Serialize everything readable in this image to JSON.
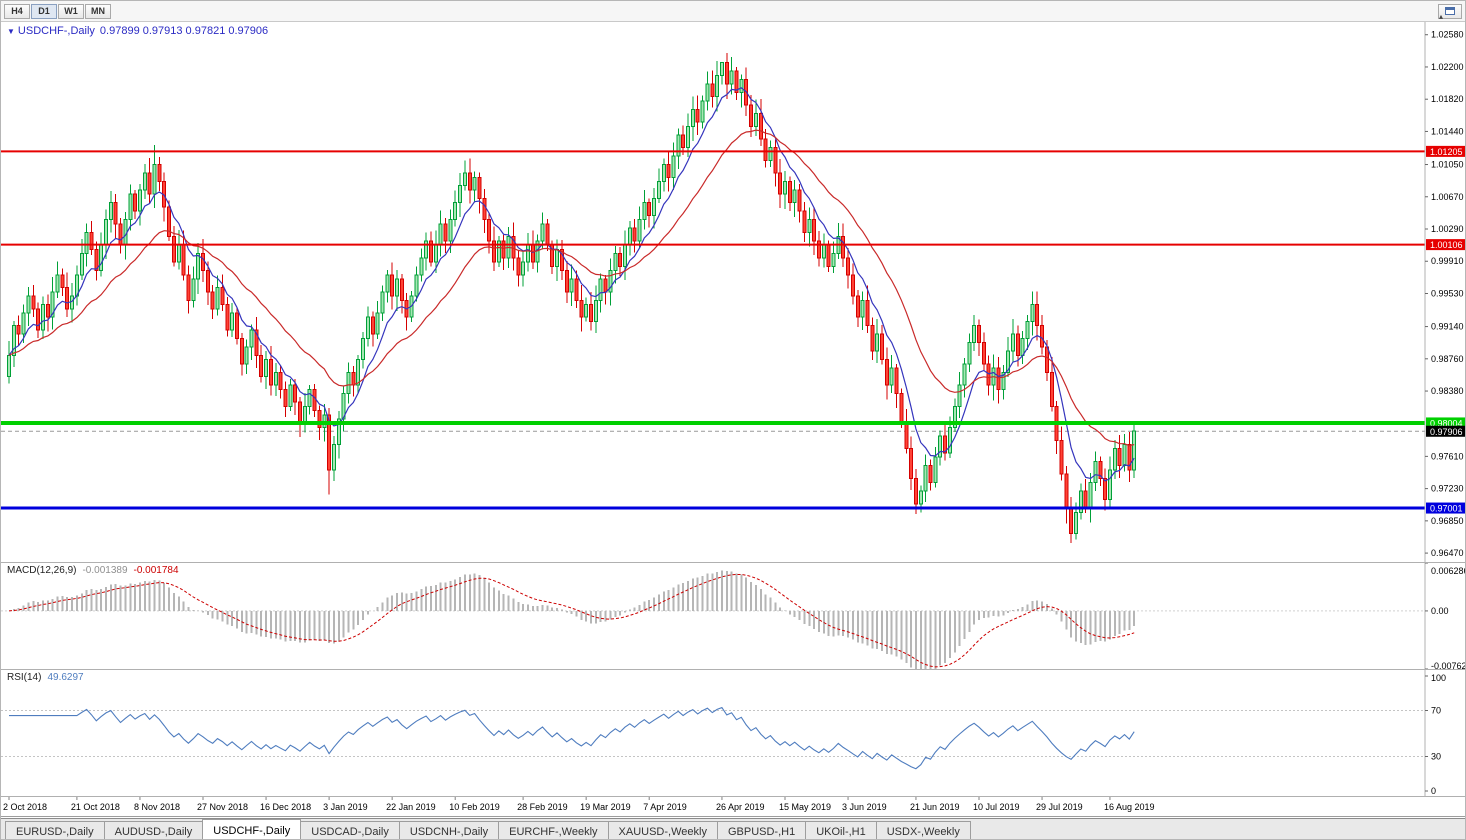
{
  "toolbar": {
    "timeframes": [
      "H4",
      "D1",
      "W1",
      "MN"
    ],
    "active_timeframe": "D1"
  },
  "chart_header": {
    "collapse_icon": "▼",
    "symbol_text": "USDCHF-,Daily",
    "ohlc_text": "0.97899 0.97913 0.97821 0.97906"
  },
  "chart_data": {
    "type": "candlestick",
    "symbol": "USDCHF",
    "period": "Daily",
    "price_axis": {
      "max": 1.0273,
      "min": 0.96365,
      "labels": [
        "1.02580",
        "1.02200",
        "1.01820",
        "1.01440",
        "1.01050",
        "1.00670",
        "1.00290",
        "0.99910",
        "0.99530",
        "0.99140",
        "0.98760",
        "0.98380",
        "0.97610",
        "0.97230",
        "0.96850",
        "0.96470"
      ]
    },
    "candles": {
      "start_open": 0.9855,
      "up_color": "#00a037",
      "up_fill": "#a6e7b4",
      "down_color": "#d40000",
      "down_fill": "#ff4336",
      "closes": [
        0.988,
        0.9915,
        0.9905,
        0.993,
        0.995,
        0.9935,
        0.991,
        0.994,
        0.9925,
        0.9955,
        0.9975,
        0.996,
        0.9935,
        0.995,
        0.9975,
        1.0,
        1.0025,
        1.0005,
        0.998,
        1.001,
        1.004,
        1.006,
        1.0035,
        1.001,
        1.004,
        1.007,
        1.005,
        1.0075,
        1.0095,
        1.007,
        1.0105,
        1.0085,
        1.0055,
        1.002,
        0.999,
        1.001,
        0.9975,
        0.9945,
        0.997,
        1.0,
        0.998,
        0.9955,
        0.9935,
        0.996,
        0.994,
        0.991,
        0.993,
        0.99,
        0.987,
        0.989,
        0.991,
        0.988,
        0.9855,
        0.9875,
        0.9845,
        0.986,
        0.984,
        0.982,
        0.9845,
        0.9825,
        0.98,
        0.982,
        0.984,
        0.9815,
        0.9795,
        0.981,
        0.9745,
        0.9775,
        0.9805,
        0.9835,
        0.986,
        0.9845,
        0.9875,
        0.99,
        0.9925,
        0.9905,
        0.993,
        0.9955,
        0.9975,
        0.995,
        0.997,
        0.9945,
        0.9925,
        0.995,
        0.9975,
        0.9995,
        1.0015,
        0.999,
        1.001,
        1.0035,
        1.0015,
        1.004,
        1.006,
        1.008,
        1.0095,
        1.0075,
        1.009,
        1.0065,
        1.004,
        1.0015,
        0.999,
        1.0015,
        0.9995,
        1.002,
        0.9995,
        0.9975,
        0.999,
        1.001,
        0.999,
        1.0015,
        1.0035,
        1.001,
        0.9985,
        1.0005,
        0.998,
        0.9955,
        0.997,
        0.9945,
        0.9925,
        0.994,
        0.992,
        0.9945,
        0.997,
        0.9955,
        0.998,
        1.0,
        0.9985,
        1.001,
        1.003,
        1.0015,
        1.004,
        1.006,
        1.0045,
        1.0065,
        1.0085,
        1.0105,
        1.009,
        1.0115,
        1.014,
        1.0125,
        1.015,
        1.017,
        1.0155,
        1.018,
        1.02,
        1.0185,
        1.021,
        1.0225,
        1.02,
        1.0215,
        1.019,
        1.0205,
        1.0175,
        1.015,
        1.0165,
        1.0135,
        1.011,
        1.0125,
        1.0095,
        1.007,
        1.0085,
        1.006,
        1.0075,
        1.005,
        1.0025,
        1.004,
        1.0015,
        0.9995,
        1.001,
        0.9985,
        1.0,
        1.002,
        0.9995,
        0.9975,
        0.995,
        0.9925,
        0.9945,
        0.9915,
        0.9885,
        0.9905,
        0.9875,
        0.9845,
        0.9865,
        0.9835,
        0.98,
        0.977,
        0.9735,
        0.9705,
        0.972,
        0.975,
        0.973,
        0.976,
        0.9785,
        0.9765,
        0.9795,
        0.982,
        0.9845,
        0.987,
        0.9895,
        0.9915,
        0.9895,
        0.987,
        0.9845,
        0.9865,
        0.984,
        0.986,
        0.9885,
        0.9905,
        0.988,
        0.99,
        0.992,
        0.994,
        0.9915,
        0.989,
        0.986,
        0.982,
        0.978,
        0.974,
        0.97,
        0.967,
        0.9695,
        0.972,
        0.97,
        0.973,
        0.9755,
        0.9735,
        0.971,
        0.9745,
        0.977,
        0.975,
        0.9775,
        0.9745,
        0.9791
      ],
      "overrides": {
        "30": {
          "h": 1.0128
        },
        "66": {
          "l": 0.9716
        },
        "147": {
          "h": 1.0226
        },
        "187": {
          "l": 0.9693
        },
        "219": {
          "l": 0.9659
        }
      }
    },
    "moving_averages": [
      {
        "period": 8,
        "color": "#3535bd"
      },
      {
        "period": 24,
        "color": "#c92a2a"
      }
    ],
    "hlines": [
      {
        "name": "resistance-line-upper",
        "value": 1.01205,
        "label": "1.01205",
        "color": "#e60000",
        "width": 2
      },
      {
        "name": "resistance-line-lower",
        "value": 1.00106,
        "label": "1.00106",
        "color": "#e60000",
        "width": 2
      },
      {
        "name": "support-line-green",
        "value": 0.98004,
        "label": "0.98004",
        "color": "#00d000",
        "width": 4
      },
      {
        "name": "support-line-blue",
        "value": 0.97001,
        "label": "0.97001",
        "color": "#0000dd",
        "width": 3
      }
    ],
    "current_price": {
      "text": "0.97906",
      "value": 0.97906,
      "badge_color": "#000000"
    },
    "macd": {
      "label": "MACD(12,26,9)",
      "value1": "-0.001389",
      "value2": "-0.001784",
      "fast": 12,
      "slow": 26,
      "signal": 9,
      "histogram_color": "#b6b6b6",
      "signal_color": "#cc0000",
      "axis": [
        {
          "text": "0.006286",
          "value": 0.006286
        },
        {
          "text": "0.00",
          "value": 0
        },
        {
          "text": "-0.00762",
          "value": -0.00762
        }
      ],
      "max": 0.006286,
      "min": -0.00762
    },
    "rsi": {
      "label": "RSI(14)",
      "value": "49.6297",
      "period": 14,
      "color": "#4f7dbf",
      "levels": [
        70,
        30
      ],
      "axis": [
        {
          "text": "100",
          "value": 100
        },
        {
          "text": "70",
          "value": 70
        },
        {
          "text": "30",
          "value": 30
        },
        {
          "text": "0",
          "value": 0
        }
      ]
    },
    "dates": [
      {
        "text": "2 Oct 2018",
        "day": 0
      },
      {
        "text": "21 Oct 2018",
        "day": 14
      },
      {
        "text": "8 Nov 2018",
        "day": 27
      },
      {
        "text": "27 Nov 2018",
        "day": 40
      },
      {
        "text": "16 Dec 2018",
        "day": 53
      },
      {
        "text": "3 Jan 2019",
        "day": 66
      },
      {
        "text": "22 Jan 2019",
        "day": 79
      },
      {
        "text": "10 Feb 2019",
        "day": 92
      },
      {
        "text": "28 Feb 2019",
        "day": 106
      },
      {
        "text": "19 Mar 2019",
        "day": 119
      },
      {
        "text": "7 Apr 2019",
        "day": 132
      },
      {
        "text": "26 Apr 2019",
        "day": 147
      },
      {
        "text": "15 May 2019",
        "day": 160
      },
      {
        "text": "3 Jun 2019",
        "day": 173
      },
      {
        "text": "21 Jun 2019",
        "day": 187
      },
      {
        "text": "10 Jul 2019",
        "day": 200
      },
      {
        "text": "29 Jul 2019",
        "day": 213
      },
      {
        "text": "16 Aug 2019",
        "day": 227
      }
    ]
  },
  "tabbar": {
    "tabs": [
      {
        "label": "EURUSD-,Daily",
        "active": false
      },
      {
        "label": "AUDUSD-,Daily",
        "active": false
      },
      {
        "label": "USDCHF-,Daily",
        "active": true
      },
      {
        "label": "USDCAD-,Daily",
        "active": false
      },
      {
        "label": "USDCNH-,Daily",
        "active": false
      },
      {
        "label": "EURCHF-,Weekly",
        "active": false
      },
      {
        "label": "XAUUSD-,Weekly",
        "active": false
      },
      {
        "label": "GBPUSD-,H1",
        "active": false
      },
      {
        "label": "UKOil-,H1",
        "active": false
      },
      {
        "label": "USDX-,Weekly",
        "active": false
      }
    ]
  }
}
